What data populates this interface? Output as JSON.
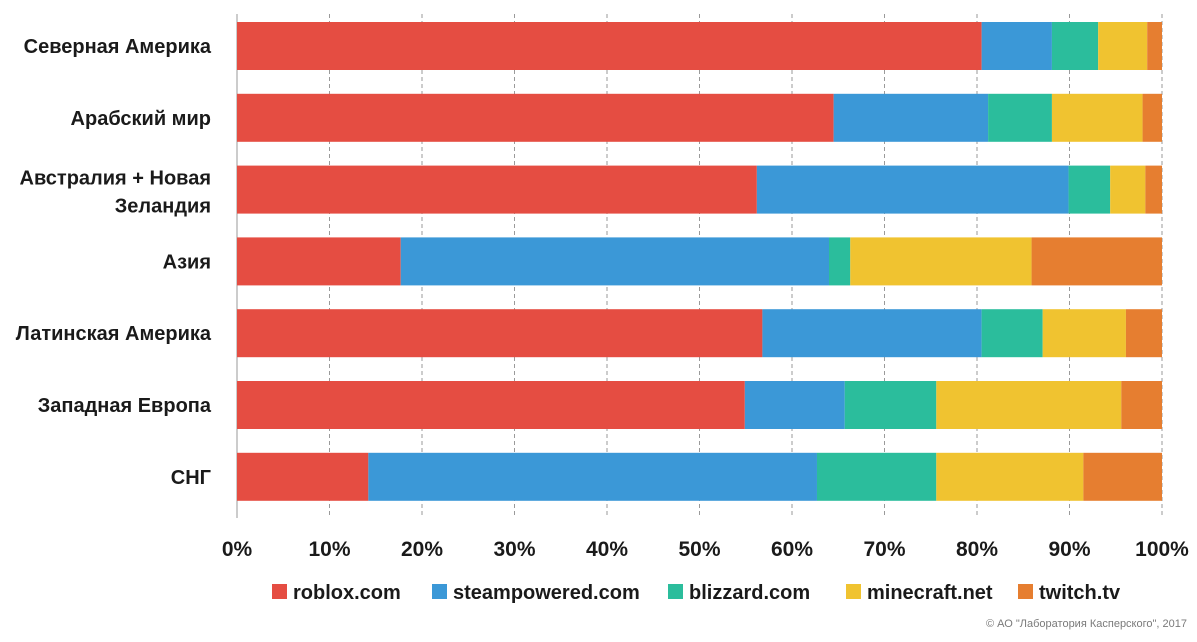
{
  "chart_data": {
    "type": "bar",
    "orientation": "horizontal",
    "stacked": true,
    "categories": [
      "Северная Америка",
      "Арабский мир",
      "Австралия + Новая Зеландия",
      "Азия",
      "Латинская Америка",
      "Западная Европа",
      "СНГ"
    ],
    "series": [
      {
        "name": "roblox.com",
        "color": "#e54d42",
        "values": [
          80.5,
          64.5,
          56.2,
          17.7,
          56.8,
          54.9,
          14.2
        ]
      },
      {
        "name": "steampowered.com",
        "color": "#3b98d7",
        "values": [
          7.6,
          16.7,
          33.7,
          46.3,
          23.7,
          10.8,
          48.5
        ]
      },
      {
        "name": "blizzard.com",
        "color": "#2bbd9c",
        "values": [
          5.0,
          6.9,
          4.5,
          2.3,
          6.6,
          9.9,
          12.9
        ]
      },
      {
        "name": "minecraft.net",
        "color": "#f0c330",
        "values": [
          5.3,
          9.8,
          3.8,
          19.6,
          9.0,
          20.0,
          15.9
        ]
      },
      {
        "name": "twitch.tv",
        "color": "#e67e30",
        "values": [
          1.6,
          2.1,
          1.8,
          14.1,
          3.9,
          4.4,
          8.5
        ]
      }
    ],
    "xlim": [
      0,
      100
    ],
    "x_ticks": [
      "0%",
      "10%",
      "20%",
      "30%",
      "40%",
      "50%",
      "60%",
      "70%",
      "80%",
      "90%",
      "100%"
    ],
    "grid": "vertical dashed",
    "legend_position": "bottom"
  },
  "copyright": "© АО \"Лаборатория Касперского\", 2017"
}
